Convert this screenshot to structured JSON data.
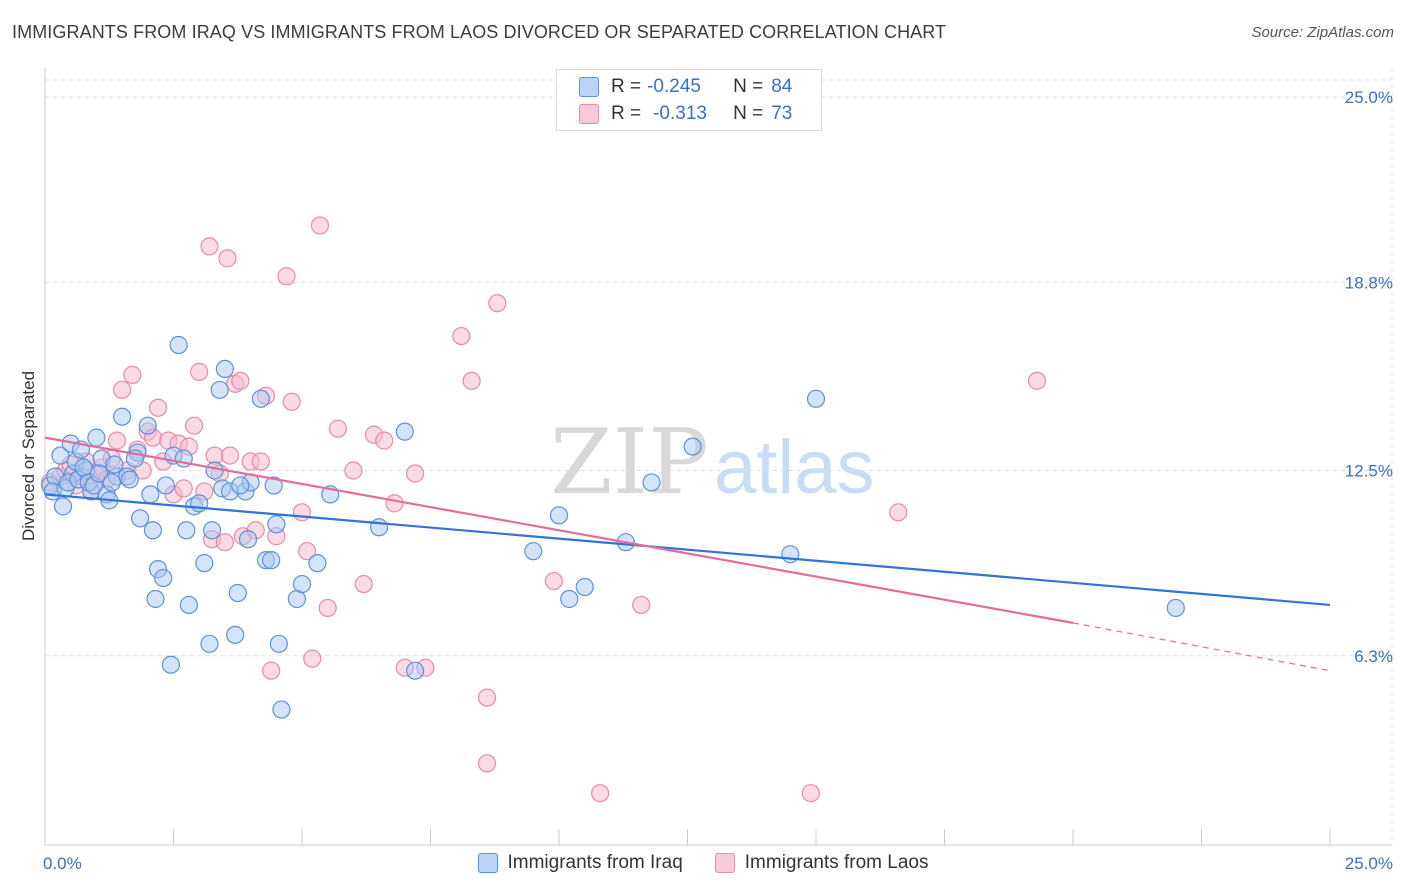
{
  "title": "IMMIGRANTS FROM IRAQ VS IMMIGRANTS FROM LAOS DIVORCED OR SEPARATED CORRELATION CHART",
  "source": "Source: ZipAtlas.com",
  "watermark": {
    "zip": "ZIP",
    "atlas": "atlas"
  },
  "legend": {
    "r_label": "R =",
    "n_label": "N =",
    "rows": [
      {
        "r": "-0.245",
        "n": "84"
      },
      {
        "r": "-0.313",
        "n": "73"
      }
    ]
  },
  "colors": {
    "iraq_fill": "#a9c8f2",
    "iraq_stroke": "#5b93da",
    "iraq_line": "#2f75d6",
    "laos_fill": "#f6bccd",
    "laos_stroke": "#e98aa8",
    "laos_line": "#e46d98",
    "tick_label": "#3a70c4",
    "grid": "#dddddd"
  },
  "chart_data": {
    "type": "scatter",
    "title": "IMMIGRANTS FROM IRAQ VS IMMIGRANTS FROM LAOS DIVORCED OR SEPARATED CORRELATION CHART",
    "xlabel": "",
    "ylabel": "Divorced or Separated",
    "xlim": [
      0,
      25
    ],
    "ylim": [
      0,
      25
    ],
    "x_tick_labels": [
      "0.0%",
      "25.0%"
    ],
    "y_ticks": [
      6.3,
      12.5,
      18.8,
      25.0
    ],
    "y_tick_labels": [
      "6.3%",
      "12.5%",
      "18.8%",
      "25.0%"
    ],
    "grid": true,
    "legend_placement": "top-center",
    "series": [
      {
        "name": "Immigrants from Iraq",
        "r": -0.245,
        "n": 84,
        "trend": {
          "x": [
            0,
            25
          ],
          "y": [
            11.7,
            8.0
          ]
        },
        "points": [
          [
            0.1,
            12.0
          ],
          [
            0.2,
            12.3
          ],
          [
            0.3,
            13.0
          ],
          [
            0.35,
            11.3
          ],
          [
            0.5,
            13.4
          ],
          [
            0.55,
            12.4
          ],
          [
            0.6,
            12.8
          ],
          [
            0.7,
            13.2
          ],
          [
            0.8,
            12.5
          ],
          [
            0.9,
            11.8
          ],
          [
            1.0,
            13.6
          ],
          [
            1.1,
            12.9
          ],
          [
            1.2,
            11.7
          ],
          [
            1.25,
            11.5
          ],
          [
            1.4,
            12.3
          ],
          [
            1.5,
            14.3
          ],
          [
            1.6,
            12.3
          ],
          [
            1.8,
            13.1
          ],
          [
            1.85,
            10.9
          ],
          [
            2.0,
            14.0
          ],
          [
            2.05,
            11.7
          ],
          [
            2.1,
            10.5
          ],
          [
            2.15,
            8.2
          ],
          [
            2.2,
            9.2
          ],
          [
            2.3,
            8.9
          ],
          [
            2.45,
            6.0
          ],
          [
            2.5,
            13.0
          ],
          [
            2.6,
            16.7
          ],
          [
            2.7,
            12.9
          ],
          [
            2.75,
            10.5
          ],
          [
            2.8,
            8.0
          ],
          [
            2.9,
            11.3
          ],
          [
            3.0,
            11.4
          ],
          [
            3.1,
            9.4
          ],
          [
            3.2,
            6.7
          ],
          [
            3.25,
            10.5
          ],
          [
            3.3,
            12.5
          ],
          [
            3.4,
            15.2
          ],
          [
            3.45,
            11.9
          ],
          [
            3.6,
            11.8
          ],
          [
            3.7,
            7.0
          ],
          [
            3.75,
            8.4
          ],
          [
            3.9,
            11.8
          ],
          [
            3.95,
            10.2
          ],
          [
            4.0,
            12.1
          ],
          [
            4.3,
            9.5
          ],
          [
            4.4,
            9.5
          ],
          [
            4.5,
            10.7
          ],
          [
            4.55,
            6.7
          ],
          [
            4.6,
            4.5
          ],
          [
            4.9,
            8.2
          ],
          [
            5.0,
            8.7
          ],
          [
            5.3,
            9.4
          ],
          [
            5.55,
            11.7
          ],
          [
            6.5,
            10.6
          ],
          [
            7.0,
            13.8
          ],
          [
            7.2,
            5.8
          ],
          [
            9.5,
            9.8
          ],
          [
            10.0,
            11.0
          ],
          [
            10.2,
            8.2
          ],
          [
            10.5,
            8.6
          ],
          [
            11.3,
            10.1
          ],
          [
            11.8,
            12.1
          ],
          [
            12.6,
            13.3
          ],
          [
            14.5,
            9.7
          ],
          [
            15.0,
            14.9
          ],
          [
            22.0,
            7.9
          ],
          [
            0.15,
            11.8
          ],
          [
            0.4,
            11.9
          ],
          [
            0.45,
            12.1
          ],
          [
            0.65,
            12.2
          ],
          [
            0.75,
            12.6
          ],
          [
            0.85,
            12.1
          ],
          [
            0.95,
            12.0
          ],
          [
            1.05,
            12.4
          ],
          [
            1.3,
            12.1
          ],
          [
            1.35,
            12.7
          ],
          [
            1.65,
            12.2
          ],
          [
            1.75,
            12.9
          ],
          [
            2.35,
            12.0
          ],
          [
            3.5,
            15.9
          ],
          [
            3.8,
            12.0
          ],
          [
            4.2,
            14.9
          ],
          [
            4.45,
            12.0
          ]
        ]
      },
      {
        "name": "Immigrants from Laos",
        "r": -0.313,
        "n": 73,
        "trend": {
          "x": [
            0,
            20
          ],
          "y": [
            13.6,
            7.4
          ]
        },
        "trend_dashed": {
          "x": [
            20,
            25
          ],
          "y": [
            7.4,
            5.8
          ]
        },
        "points": [
          [
            0.1,
            12.1
          ],
          [
            0.3,
            12.3
          ],
          [
            0.4,
            12.5
          ],
          [
            0.5,
            12.7
          ],
          [
            0.6,
            12.0
          ],
          [
            0.7,
            12.3
          ],
          [
            0.8,
            12.8
          ],
          [
            0.9,
            11.8
          ],
          [
            1.0,
            12.4
          ],
          [
            1.1,
            12.6
          ],
          [
            1.2,
            12.2
          ],
          [
            1.3,
            12.9
          ],
          [
            1.4,
            13.5
          ],
          [
            1.5,
            15.2
          ],
          [
            1.6,
            12.5
          ],
          [
            1.7,
            15.7
          ],
          [
            1.8,
            13.2
          ],
          [
            1.9,
            12.5
          ],
          [
            2.0,
            13.8
          ],
          [
            2.1,
            13.6
          ],
          [
            2.2,
            14.6
          ],
          [
            2.3,
            12.8
          ],
          [
            2.4,
            13.5
          ],
          [
            2.5,
            11.7
          ],
          [
            2.6,
            13.4
          ],
          [
            2.7,
            11.9
          ],
          [
            2.8,
            13.3
          ],
          [
            2.9,
            14.0
          ],
          [
            3.0,
            15.8
          ],
          [
            3.1,
            11.8
          ],
          [
            3.2,
            20.0
          ],
          [
            3.25,
            10.2
          ],
          [
            3.3,
            13.0
          ],
          [
            3.4,
            12.4
          ],
          [
            3.5,
            10.1
          ],
          [
            3.55,
            19.6
          ],
          [
            3.6,
            13.0
          ],
          [
            3.7,
            15.4
          ],
          [
            3.8,
            15.5
          ],
          [
            3.85,
            10.3
          ],
          [
            4.0,
            12.8
          ],
          [
            4.1,
            10.5
          ],
          [
            4.2,
            12.8
          ],
          [
            4.3,
            15.0
          ],
          [
            4.4,
            5.8
          ],
          [
            4.5,
            10.3
          ],
          [
            4.7,
            19.0
          ],
          [
            4.8,
            14.8
          ],
          [
            5.0,
            11.1
          ],
          [
            5.1,
            9.8
          ],
          [
            5.2,
            6.2
          ],
          [
            5.35,
            20.7
          ],
          [
            5.5,
            7.9
          ],
          [
            5.7,
            13.9
          ],
          [
            6.0,
            12.5
          ],
          [
            6.2,
            8.7
          ],
          [
            6.4,
            13.7
          ],
          [
            6.6,
            13.5
          ],
          [
            6.8,
            11.4
          ],
          [
            7.0,
            5.9
          ],
          [
            7.2,
            12.4
          ],
          [
            7.4,
            5.9
          ],
          [
            8.1,
            17.0
          ],
          [
            8.3,
            15.5
          ],
          [
            8.6,
            4.9
          ],
          [
            8.6,
            2.7
          ],
          [
            8.8,
            18.1
          ],
          [
            9.9,
            8.8
          ],
          [
            10.8,
            1.7
          ],
          [
            11.6,
            8.0
          ],
          [
            14.9,
            1.7
          ],
          [
            16.6,
            11.1
          ],
          [
            19.3,
            15.5
          ]
        ]
      }
    ]
  },
  "bottom_legend": {
    "items": [
      {
        "label": "Immigrants from Iraq"
      },
      {
        "label": "Immigrants from Laos"
      }
    ]
  }
}
